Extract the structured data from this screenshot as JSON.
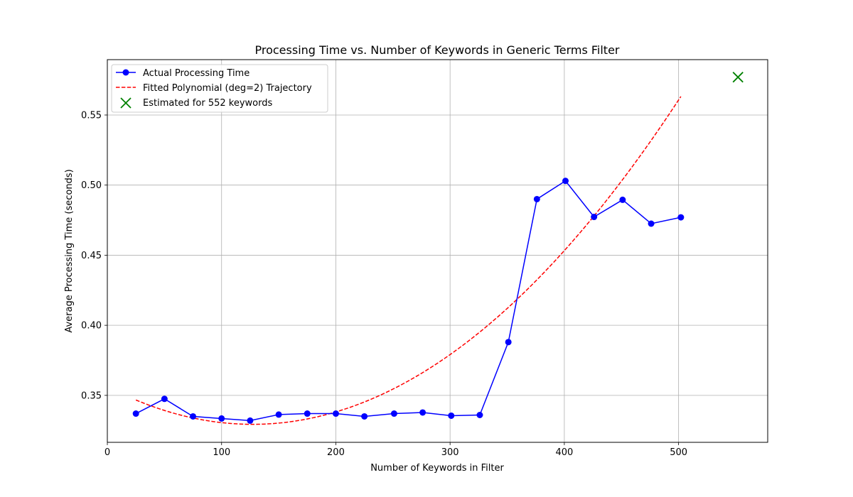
{
  "chart_data": {
    "type": "line",
    "title": "Processing Time vs. Number of Keywords in Generic Terms Filter",
    "xlabel": "Number of Keywords in Filter",
    "ylabel": "Average Processing Time (seconds)",
    "xlim": [
      0,
      578
    ],
    "ylim": [
      0.3165,
      0.5895
    ],
    "x_ticks": [
      0,
      100,
      200,
      300,
      400,
      500
    ],
    "x_tick_labels": [
      "0",
      "100",
      "200",
      "300",
      "400",
      "500"
    ],
    "y_ticks": [
      0.35,
      0.4,
      0.45,
      0.5,
      0.55
    ],
    "y_tick_labels": [
      "0.35",
      "0.40",
      "0.45",
      "0.50",
      "0.55"
    ],
    "grid": true,
    "legend_position": "top-left",
    "series": [
      {
        "name": "Actual Processing Time",
        "kind": "line-markers",
        "color": "#0000ff",
        "x": [
          25,
          50,
          75,
          100,
          125,
          150,
          175,
          200,
          225,
          251,
          276,
          301,
          326,
          351,
          376,
          401,
          426,
          451,
          476,
          502
        ],
        "y": [
          0.337,
          0.3475,
          0.335,
          0.3335,
          0.332,
          0.3363,
          0.337,
          0.337,
          0.335,
          0.337,
          0.3378,
          0.3355,
          0.336,
          0.388,
          0.49,
          0.503,
          0.4773,
          0.4895,
          0.4725,
          0.477
        ]
      },
      {
        "name": "Fitted Polynomial (deg=2) Trajectory",
        "kind": "dashed-curve",
        "color": "#ff0000",
        "coefficients": [
          0.35623,
          -0.000423,
          1.664e-06
        ],
        "x_range": [
          25,
          502
        ]
      },
      {
        "name": "Estimated for 552 keywords",
        "kind": "x-marker",
        "color": "#008000",
        "x": [
          552
        ],
        "y": [
          0.577
        ]
      }
    ]
  }
}
